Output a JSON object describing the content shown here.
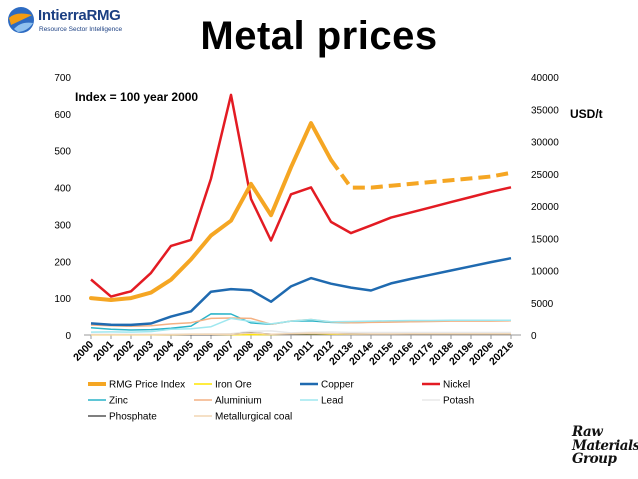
{
  "header": {
    "title": "Metal prices",
    "logo_brand": "IntierraRMG",
    "logo_tagline": "Resource Sector Intelligence"
  },
  "footer_logo": {
    "lines": [
      "Raw",
      "Materials",
      "Group"
    ]
  },
  "colors": {
    "rmg_index": "#f5a623",
    "iron_ore": "#ffe600",
    "copper": "#1f6ab0",
    "nickel": "#e31b23",
    "zinc": "#2ab3c8",
    "aluminium": "#f4b183",
    "lead": "#9fe7ef",
    "potash": "#e8e8e8",
    "phosphate": "#555555",
    "metallurgical_coal": "#f2d6b3"
  },
  "chart_data": {
    "type": "line",
    "title": "Metal prices",
    "annotations": [
      "Index = 100 year 2000",
      "USD/t"
    ],
    "categories": [
      "2000",
      "2001",
      "2002",
      "2003",
      "2004",
      "2005",
      "2006",
      "2007",
      "2008",
      "2009",
      "2010",
      "2011",
      "2012",
      "2013e",
      "2014e",
      "2015e",
      "2016e",
      "2017e",
      "2018e",
      "2019e",
      "2020e",
      "2021e"
    ],
    "y_left": {
      "ticks": [
        "0",
        "100",
        "200",
        "300",
        "400",
        "500",
        "600",
        "700"
      ],
      "ylim": [
        0,
        700
      ]
    },
    "y_right": {
      "ticks": [
        "0",
        "5000",
        "10000",
        "15000",
        "20000",
        "25000",
        "30000",
        "35000",
        "40000"
      ],
      "ylim": [
        0,
        40000
      ]
    },
    "grid": false,
    "legend_position": "bottom",
    "series": [
      {
        "name": "RMG Price Index",
        "axis": "left",
        "color": "#f5a623",
        "width": 4,
        "dash_from": 13,
        "values": [
          100,
          95,
          100,
          115,
          150,
          205,
          270,
          310,
          410,
          325,
          455,
          575,
          475,
          400,
          400,
          405,
          410,
          415,
          420,
          425,
          430,
          440
        ]
      },
      {
        "name": "Iron Ore",
        "axis": "right",
        "color": "#ffe600",
        "width": 1.5,
        "values": [
          13,
          13,
          13,
          14,
          16,
          28,
          33,
          36,
          60,
          80,
          140,
          168,
          130,
          135,
          125,
          120,
          115,
          112,
          110,
          110,
          110,
          110
        ]
      },
      {
        "name": "Copper",
        "axis": "right",
        "color": "#1f6ab0",
        "width": 2.5,
        "values": [
          1800,
          1580,
          1560,
          1780,
          2860,
          3680,
          6720,
          7120,
          6950,
          5160,
          7540,
          8820,
          7960,
          7350,
          6900,
          8000,
          8700,
          9350,
          10000,
          10650,
          11300,
          11900
        ]
      },
      {
        "name": "Nickel",
        "axis": "right",
        "color": "#e31b23",
        "width": 2.5,
        "values": [
          8600,
          5950,
          6770,
          9630,
          13820,
          14740,
          24250,
          37230,
          21100,
          14650,
          21810,
          22890,
          17540,
          15800,
          17000,
          18200,
          19000,
          19800,
          20600,
          21400,
          22200,
          22900
        ]
      },
      {
        "name": "Zinc",
        "axis": "right",
        "color": "#2ab3c8",
        "width": 1.5,
        "values": [
          1130,
          890,
          780,
          830,
          1050,
          1380,
          3270,
          3250,
          1870,
          1660,
          2160,
          2190,
          1950,
          1910,
          2000,
          2050,
          2100,
          2150,
          2200,
          2200,
          2200,
          2200
        ]
      },
      {
        "name": "Aluminium",
        "axis": "right",
        "color": "#f4b183",
        "width": 1.5,
        "values": [
          1550,
          1440,
          1350,
          1430,
          1720,
          1900,
          2570,
          2640,
          2570,
          1670,
          2170,
          2400,
          2020,
          1900,
          1950,
          2000,
          2050,
          2100,
          2150,
          2150,
          2150,
          2200
        ]
      },
      {
        "name": "Lead",
        "axis": "right",
        "color": "#9fe7ef",
        "width": 1.5,
        "values": [
          450,
          480,
          450,
          520,
          890,
          980,
          1290,
          2580,
          2090,
          1720,
          2150,
          2400,
          2060,
          2100,
          2150,
          2200,
          2250,
          2250,
          2300,
          2300,
          2300,
          2300
        ]
      },
      {
        "name": "Potash",
        "axis": "right",
        "color": "#e8e8e8",
        "width": 1.5,
        "values": [
          120,
          118,
          113,
          113,
          125,
          158,
          172,
          200,
          570,
          630,
          330,
          435,
          460,
          390,
          380,
          380,
          380,
          380,
          380,
          380,
          380,
          380
        ]
      },
      {
        "name": "Phosphate",
        "axis": "right",
        "color": "#555555",
        "width": 1.5,
        "values": [
          44,
          42,
          40,
          37,
          40,
          42,
          44,
          70,
          346,
          121,
          123,
          185,
          185,
          150,
          130,
          130,
          130,
          130,
          130,
          130,
          130,
          130
        ]
      },
      {
        "name": "Metallurgical coal",
        "axis": "right",
        "color": "#f2d6b3",
        "width": 1.5,
        "values": [
          40,
          41,
          42,
          45,
          56,
          125,
          115,
          95,
          300,
          130,
          208,
          290,
          210,
          160,
          160,
          160,
          165,
          170,
          170,
          170,
          175,
          175
        ]
      }
    ]
  }
}
